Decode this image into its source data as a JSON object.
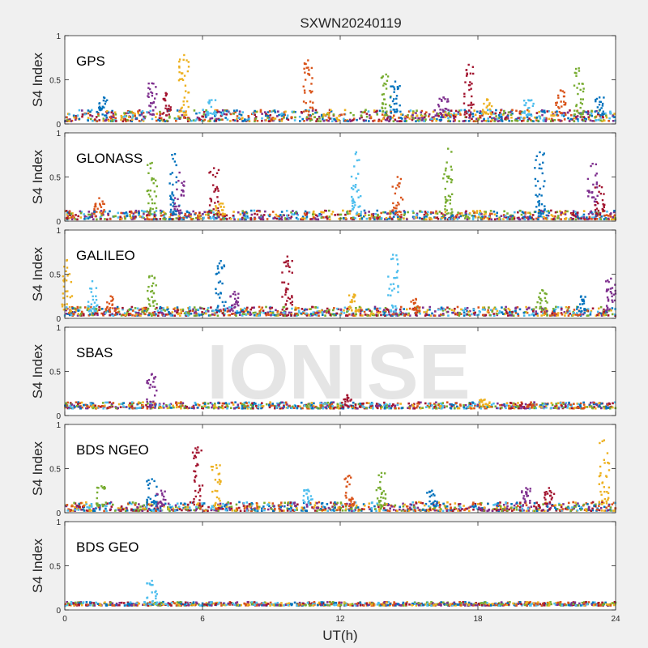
{
  "title": "SXWN20240119",
  "xlabel": "UT(h)",
  "watermark": "IONISE",
  "chart_data": [
    {
      "type": "scatter",
      "panel_label": "GPS",
      "ylabel": "S4 Index",
      "xlim": [
        0,
        24
      ],
      "ylim": [
        0,
        1
      ],
      "x_ticks": [],
      "y_ticks": [
        0,
        0.5,
        1
      ],
      "grid": false,
      "colors": [
        "#0072BD",
        "#D95319",
        "#EDB120",
        "#7E2F8E",
        "#77AC30",
        "#4DBEEE",
        "#A2142F"
      ],
      "baseline": [
        0.03,
        0.16
      ],
      "spikes": [
        {
          "x": 1.7,
          "peak": 0.3
        },
        {
          "x": 3.8,
          "peak": 0.46
        },
        {
          "x": 4.4,
          "peak": 0.35
        },
        {
          "x": 5.2,
          "peak": 0.78
        },
        {
          "x": 6.4,
          "peak": 0.27
        },
        {
          "x": 10.6,
          "peak": 0.72
        },
        {
          "x": 14.0,
          "peak": 0.56
        },
        {
          "x": 14.4,
          "peak": 0.48
        },
        {
          "x": 16.5,
          "peak": 0.3
        },
        {
          "x": 17.6,
          "peak": 0.67
        },
        {
          "x": 18.4,
          "peak": 0.28
        },
        {
          "x": 20.2,
          "peak": 0.27
        },
        {
          "x": 21.6,
          "peak": 0.38
        },
        {
          "x": 22.4,
          "peak": 0.63
        },
        {
          "x": 23.3,
          "peak": 0.3
        }
      ]
    },
    {
      "type": "scatter",
      "panel_label": "GLONASS",
      "ylabel": "S4 Index",
      "xlim": [
        0,
        24
      ],
      "ylim": [
        0,
        1
      ],
      "x_ticks": [],
      "y_ticks": [
        0,
        0.5,
        1
      ],
      "grid": false,
      "colors": [
        "#0072BD",
        "#D95319",
        "#EDB120",
        "#7E2F8E",
        "#77AC30",
        "#4DBEEE",
        "#A2142F"
      ],
      "baseline": [
        0.02,
        0.12
      ],
      "spikes": [
        {
          "x": 1.5,
          "peak": 0.26
        },
        {
          "x": 3.8,
          "peak": 0.66
        },
        {
          "x": 4.8,
          "peak": 0.76
        },
        {
          "x": 5.0,
          "peak": 0.55
        },
        {
          "x": 6.5,
          "peak": 0.6
        },
        {
          "x": 6.8,
          "peak": 0.2
        },
        {
          "x": 12.7,
          "peak": 0.78
        },
        {
          "x": 14.5,
          "peak": 0.5
        },
        {
          "x": 16.7,
          "peak": 0.82
        },
        {
          "x": 20.7,
          "peak": 0.78
        },
        {
          "x": 23.0,
          "peak": 0.65
        },
        {
          "x": 23.3,
          "peak": 0.4
        }
      ]
    },
    {
      "type": "scatter",
      "panel_label": "GALILEO",
      "ylabel": "S4 Index",
      "xlim": [
        0,
        24
      ],
      "ylim": [
        0,
        1
      ],
      "x_ticks": [],
      "y_ticks": [
        0,
        0.5,
        1
      ],
      "grid": false,
      "colors": [
        "#0072BD",
        "#D95319",
        "#EDB120",
        "#7E2F8E",
        "#77AC30",
        "#4DBEEE",
        "#A2142F"
      ],
      "baseline": [
        0.03,
        0.13
      ],
      "spikes": [
        {
          "x": 0.1,
          "peak": 0.66
        },
        {
          "x": 1.2,
          "peak": 0.42
        },
        {
          "x": 2.0,
          "peak": 0.25
        },
        {
          "x": 3.8,
          "peak": 0.48
        },
        {
          "x": 6.8,
          "peak": 0.65
        },
        {
          "x": 7.4,
          "peak": 0.3
        },
        {
          "x": 9.7,
          "peak": 0.7
        },
        {
          "x": 12.6,
          "peak": 0.27
        },
        {
          "x": 14.3,
          "peak": 0.72
        },
        {
          "x": 15.3,
          "peak": 0.22
        },
        {
          "x": 20.8,
          "peak": 0.32
        },
        {
          "x": 22.5,
          "peak": 0.25
        },
        {
          "x": 23.8,
          "peak": 0.45
        }
      ]
    },
    {
      "type": "scatter",
      "panel_label": "SBAS",
      "ylabel": "S4 Index",
      "xlim": [
        0,
        24
      ],
      "ylim": [
        0,
        1
      ],
      "x_ticks": [],
      "y_ticks": [
        0,
        0.5,
        1
      ],
      "grid": false,
      "colors": [
        "#0072BD",
        "#D95319",
        "#EDB120",
        "#7E2F8E",
        "#77AC30",
        "#4DBEEE",
        "#A2142F"
      ],
      "baseline": [
        0.08,
        0.15
      ],
      "spikes": [
        {
          "x": 3.8,
          "peak": 0.47
        },
        {
          "x": 12.3,
          "peak": 0.23
        },
        {
          "x": 18.3,
          "peak": 0.18
        }
      ]
    },
    {
      "type": "scatter",
      "panel_label": "BDS NGEO",
      "ylabel": "S4 Index",
      "xlim": [
        0,
        24
      ],
      "ylim": [
        0,
        1
      ],
      "x_ticks": [],
      "y_ticks": [
        0,
        0.5,
        1
      ],
      "grid": false,
      "colors": [
        "#0072BD",
        "#D95319",
        "#EDB120",
        "#7E2F8E",
        "#77AC30",
        "#4DBEEE",
        "#A2142F"
      ],
      "baseline": [
        0.02,
        0.12
      ],
      "spikes": [
        {
          "x": 1.6,
          "peak": 0.3
        },
        {
          "x": 3.8,
          "peak": 0.38
        },
        {
          "x": 4.2,
          "peak": 0.25
        },
        {
          "x": 5.8,
          "peak": 0.74
        },
        {
          "x": 6.6,
          "peak": 0.54
        },
        {
          "x": 10.6,
          "peak": 0.26
        },
        {
          "x": 12.4,
          "peak": 0.42
        },
        {
          "x": 13.8,
          "peak": 0.45
        },
        {
          "x": 16.0,
          "peak": 0.25
        },
        {
          "x": 20.1,
          "peak": 0.28
        },
        {
          "x": 21.1,
          "peak": 0.28
        },
        {
          "x": 23.5,
          "peak": 0.82
        }
      ]
    },
    {
      "type": "scatter",
      "panel_label": "BDS GEO",
      "ylabel": "S4 Index",
      "xlim": [
        0,
        24
      ],
      "ylim": [
        0,
        1
      ],
      "x_ticks": [
        0,
        6,
        12,
        18,
        24
      ],
      "y_ticks": [
        0,
        0.5,
        1
      ],
      "grid": false,
      "colors": [
        "#0072BD",
        "#D95319",
        "#EDB120",
        "#7E2F8E",
        "#77AC30",
        "#4DBEEE",
        "#A2142F"
      ],
      "baseline": [
        0.05,
        0.09
      ],
      "spikes": [
        {
          "x": 3.8,
          "peak": 0.33
        }
      ]
    }
  ]
}
